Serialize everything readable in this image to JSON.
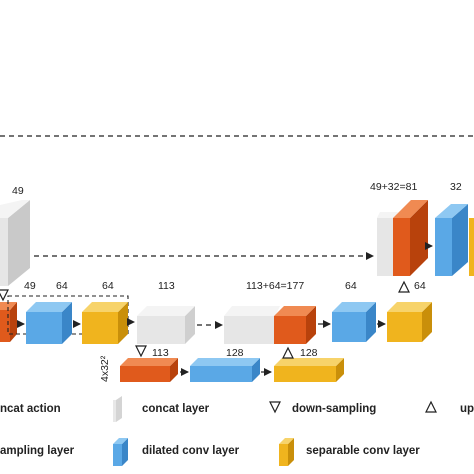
{
  "colors": {
    "concat": "#e6e6e6",
    "down_conv": "#e05a1c",
    "dilated_conv": "#5aa8e6",
    "separable_conv": "#f0b41e",
    "arrow": "#222222"
  },
  "labels": {
    "l49_top_left": "49",
    "l49_plus_32": "49+32=81",
    "l32_top_right": "32",
    "l49_mid": "49",
    "l64_a": "64",
    "l64_b": "64",
    "l113_mid": "113",
    "l113_plus_64": "113+64=177",
    "l64_c": "64",
    "l64_d": "64",
    "l113_low": "113",
    "l128_a": "128",
    "l128_b": "128",
    "l4x32": "4x32²"
  },
  "legend": {
    "concat_action": "ncat action",
    "concat_layer": "concat layer",
    "down_sampling": "down-sampling",
    "up_sampling": "up",
    "sampling_layer": "ampling layer",
    "dilated_conv_layer": "dilated conv layer",
    "separable_conv_layer": "separable conv layer"
  }
}
